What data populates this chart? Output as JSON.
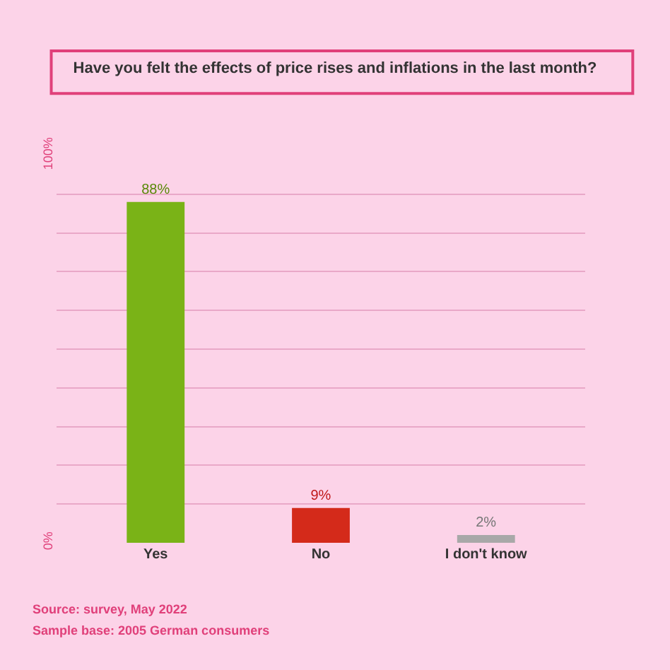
{
  "chart_data": {
    "type": "bar",
    "title": "Have you felt the effects of price rises and inflations in the last month?",
    "categories": [
      "Yes",
      "No",
      "I don't know"
    ],
    "values": [
      88,
      9,
      2
    ],
    "colors": [
      "#7ab317",
      "#d42a1a",
      "#a8a8a8"
    ],
    "value_labels": [
      "88%",
      "9%",
      "2%"
    ],
    "ylim": [
      0,
      100
    ],
    "yticks": [
      {
        "value": 0,
        "label": "0%"
      },
      {
        "value": 10,
        "label": null
      },
      {
        "value": 20,
        "label": null
      },
      {
        "value": 30,
        "label": null
      },
      {
        "value": 40,
        "label": null
      },
      {
        "value": 50,
        "label": null
      },
      {
        "value": 60,
        "label": null
      },
      {
        "value": 70,
        "label": null
      },
      {
        "value": 80,
        "label": null
      },
      {
        "value": 90,
        "label": null
      },
      {
        "value": 100,
        "label": "100%"
      }
    ],
    "grid": "y",
    "annotations": [
      "Source: survey, May 2022",
      "Sample base: 2005 German consumers"
    ]
  }
}
